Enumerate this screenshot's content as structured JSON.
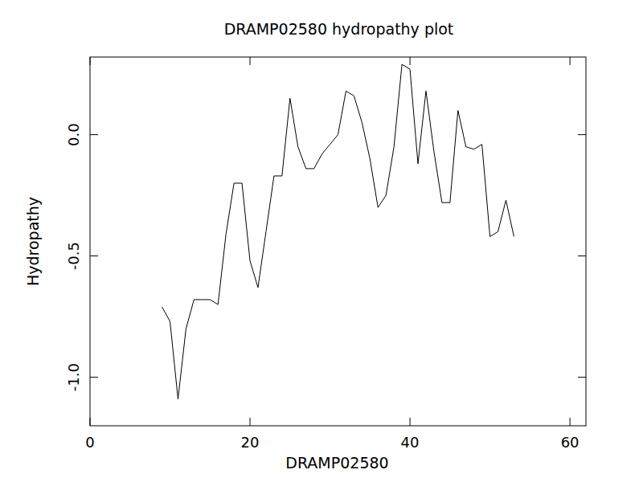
{
  "chart_data": {
    "type": "line",
    "title": "DRAMP02580 hydropathy plot",
    "x_label": "DRAMP02580",
    "y_label": "Hydropathy",
    "x": [
      9,
      10,
      11,
      12,
      13,
      14,
      15,
      16,
      17,
      18,
      19,
      20,
      21,
      22,
      23,
      24,
      25,
      26,
      27,
      28,
      29,
      30,
      31,
      32,
      33,
      34,
      35,
      36,
      37,
      38,
      39,
      40,
      41,
      42,
      43,
      44,
      45,
      46,
      47,
      48,
      49,
      50,
      51,
      52,
      53
    ],
    "values": [
      -0.71,
      -0.77,
      -1.09,
      -0.8,
      -0.68,
      -0.68,
      -0.68,
      -0.7,
      -0.41,
      -0.2,
      -0.2,
      -0.52,
      -0.63,
      -0.4,
      -0.17,
      -0.17,
      0.15,
      -0.05,
      -0.14,
      -0.14,
      -0.08,
      -0.04,
      0.0,
      0.18,
      0.16,
      0.05,
      -0.1,
      -0.3,
      -0.25,
      -0.05,
      0.29,
      0.27,
      -0.12,
      0.18,
      -0.07,
      -0.28,
      -0.28,
      0.1,
      -0.05,
      -0.06,
      -0.04,
      -0.42,
      -0.4,
      -0.27,
      -0.42
    ],
    "color": "#000000",
    "xlim": [
      0,
      62
    ],
    "xticks": [
      0,
      20,
      40,
      60
    ],
    "ylim": [
      -1.2,
      0.32
    ],
    "yticks": [
      {
        "value": -1,
        "label": "-1.0"
      },
      -0.5,
      {
        "value": 0,
        "label": "0.0"
      }
    ],
    "grid": false
  }
}
